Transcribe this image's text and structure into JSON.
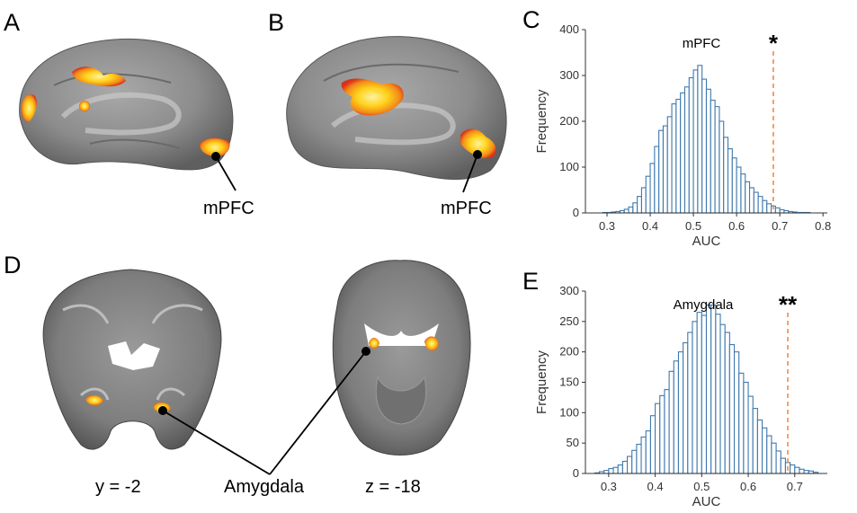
{
  "panels": {
    "A": {
      "label": "A",
      "region_label": "mPFC"
    },
    "B": {
      "label": "B",
      "region_label": "mPFC"
    },
    "D": {
      "label": "D",
      "coronal_label": "y = -2",
      "axial_label": "z = -18",
      "region_label": "Amygdala"
    }
  },
  "colors": {
    "brain_gray": "#8a8a8a",
    "activation_hot": "#ffd21a",
    "activation_edge": "#e43a10",
    "hist_edge": "#3f79ad",
    "threshold": "#ef8a4a"
  },
  "chart_data": [
    {
      "panel_label": "C",
      "type": "bar",
      "title": "mPFC",
      "significance": "*",
      "xlabel": "AUC",
      "ylabel": "Frequency",
      "xlim": [
        0.25,
        0.81
      ],
      "ylim": [
        0,
        400
      ],
      "xticks": [
        "0.3",
        "0.4",
        "0.5",
        "0.6",
        "0.7",
        "0.8"
      ],
      "yticks": [
        "0",
        "100",
        "200",
        "300",
        "400"
      ],
      "threshold": 0.685,
      "bin_start": 0.26,
      "bin_width": 0.01,
      "values": [
        0,
        0,
        0,
        1,
        1,
        2,
        3,
        5,
        8,
        13,
        22,
        36,
        55,
        80,
        108,
        145,
        180,
        190,
        210,
        238,
        248,
        262,
        275,
        295,
        312,
        322,
        292,
        270,
        246,
        232,
        200,
        165,
        140,
        120,
        100,
        85,
        68,
        55,
        45,
        36,
        27,
        20,
        15,
        11,
        7,
        5,
        3,
        2,
        1,
        1,
        1,
        0,
        0,
        0,
        0
      ]
    },
    {
      "panel_label": "E",
      "type": "bar",
      "title": "Amygdala",
      "significance": "**",
      "xlabel": "AUC",
      "ylabel": "Frequency",
      "xlim": [
        0.25,
        0.77
      ],
      "ylim": [
        0,
        300
      ],
      "xticks": [
        "0.3",
        "0.4",
        "0.5",
        "0.6",
        "0.7"
      ],
      "yticks": [
        "0",
        "50",
        "100",
        "150",
        "200",
        "250",
        "300"
      ],
      "threshold": 0.685,
      "bin_start": 0.27,
      "bin_width": 0.01,
      "values": [
        1,
        3,
        5,
        8,
        10,
        14,
        20,
        28,
        38,
        48,
        60,
        70,
        95,
        115,
        128,
        138,
        168,
        185,
        200,
        215,
        232,
        250,
        265,
        260,
        277,
        277,
        262,
        245,
        232,
        212,
        200,
        165,
        150,
        127,
        107,
        88,
        75,
        62,
        50,
        37,
        25,
        18,
        14,
        10,
        7,
        5,
        4,
        2
      ]
    }
  ]
}
